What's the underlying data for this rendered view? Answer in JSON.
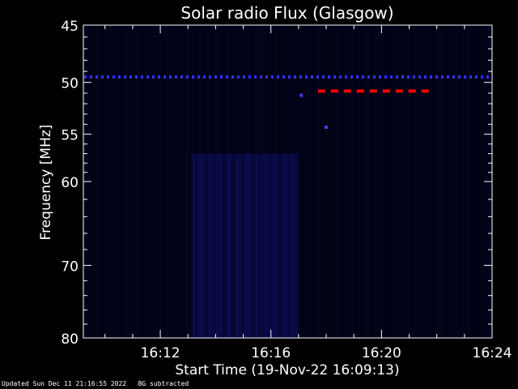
{
  "chart_data": {
    "type": "heatmap",
    "title": "Solar radio Flux (Glasgow)",
    "xlabel": "Start Time (19-Nov-22 16:09:13)",
    "ylabel": "Frequency [MHz]",
    "x_ticks": [
      "16:12",
      "16:16",
      "16:20",
      "16:24"
    ],
    "y_ticks": [
      "45",
      "50",
      "55",
      "60",
      "70",
      "80"
    ],
    "y_tick_values": [
      45,
      50,
      55,
      60,
      70,
      80
    ],
    "ylim": [
      45,
      80
    ],
    "y_scale": "log",
    "xlim_minutes": [
      9.2167,
      24.0
    ],
    "background_color": "#000010",
    "interference_line": {
      "frequency_mhz": 49.5,
      "color": "#3030ff"
    },
    "marker_segment": {
      "frequency_mhz": 50.8,
      "start_minute": 17.7,
      "end_minute": 22.0,
      "color": "#ff0000"
    },
    "bright_points": [
      {
        "minute": 17.1,
        "frequency_mhz": 51.2
      },
      {
        "minute": 18.0,
        "frequency_mhz": 54.3
      }
    ],
    "emission_band": {
      "start_minute": 13.1,
      "end_minute": 17.0,
      "color": "#14147a"
    }
  },
  "footer": {
    "updated": "Updated Sun Dec 11 21:16:55 2022",
    "note": "BG subtracted"
  }
}
